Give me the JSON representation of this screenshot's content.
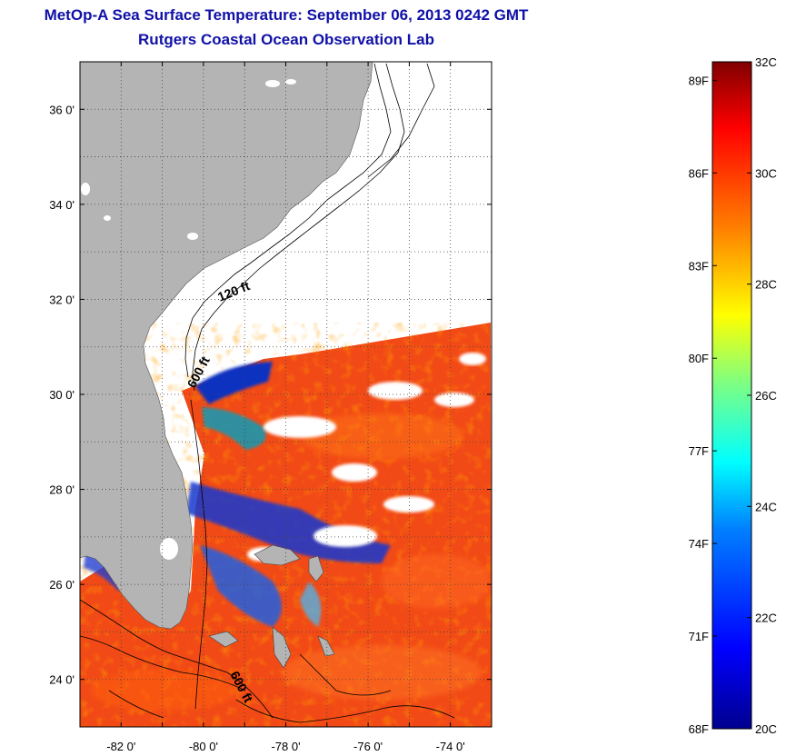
{
  "title": "MetOp-A Sea Surface Temperature:  September 06, 2013 0242 GMT",
  "subtitle": "Rutgers Coastal Ocean Observation Lab",
  "map": {
    "lat_labels": [
      "36 0'",
      "34 0'",
      "32 0'",
      "30 0'",
      "28 0'",
      "26 0'",
      "24 0'"
    ],
    "lat_values": [
      36,
      34,
      32,
      30,
      28,
      26,
      24
    ],
    "lon_labels": [
      "-82 0'",
      "-80 0'",
      "-78 0'",
      "-76 0'",
      "-74 0'"
    ],
    "lon_values": [
      -82,
      -80,
      -78,
      -76,
      -74
    ],
    "lat_range": [
      23.0,
      37.0
    ],
    "lon_range": [
      -83.0,
      -73.0
    ],
    "grid": "dotted",
    "contour_labels": [
      "120 ft",
      "600 ft",
      "600 ft"
    ],
    "colors": {
      "land": "#b4b4b4",
      "no_data": "#ffffff",
      "contour": "#000000"
    }
  },
  "colorbar": {
    "celsius_labels": [
      "32C",
      "30C",
      "28C",
      "26C",
      "24C",
      "22C",
      "20C"
    ],
    "celsius_values": [
      32,
      30,
      28,
      26,
      24,
      22,
      20
    ],
    "fahrenheit_labels": [
      "89F",
      "86F",
      "83F",
      "80F",
      "77F",
      "74F",
      "71F",
      "68F"
    ],
    "fahrenheit_values": [
      89,
      86,
      83,
      80,
      77,
      74,
      71,
      68
    ],
    "range_c": [
      20,
      32
    ],
    "colormap": [
      "#00008f",
      "#0000ff",
      "#0080ff",
      "#00ffff",
      "#80ff80",
      "#ffff00",
      "#ff8000",
      "#ff0000",
      "#800000"
    ]
  }
}
